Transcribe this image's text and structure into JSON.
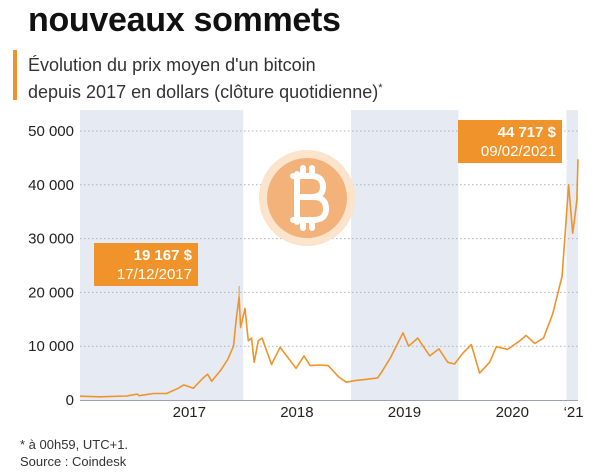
{
  "header": {
    "title": "nouveaux sommets",
    "subtitle_line1": "Évolution du prix moyen d'un bitcoin",
    "subtitle_line2": "depuis 2017 en dollars (clôture quotidienne)",
    "subtitle_mark": "*"
  },
  "footer": {
    "note": "* à 00h59, UTC+1.",
    "source": "Source : Coindesk"
  },
  "colors": {
    "accent": "#f0932b",
    "line": "#f0932b",
    "band": "#e5eaf3",
    "coin": "#f2b27a",
    "coin_ring": "#fbe3cc"
  },
  "icon": "bitcoin-coin-icon",
  "chart_data": {
    "type": "line",
    "x_unit": "date",
    "ylim": [
      0,
      50000
    ],
    "yticks": [
      0,
      10000,
      20000,
      30000,
      40000,
      50000
    ],
    "ytick_labels": [
      "0",
      "10 000",
      "20 000",
      "30 000",
      "40 000",
      "50 000"
    ],
    "xlim": [
      "2016-06-25",
      "2021-02-09"
    ],
    "xtick_labels": [
      "2017",
      "2018",
      "2019",
      "2020",
      "‘21"
    ],
    "xtick_dates": [
      "2017-07-01",
      "2018-07-01",
      "2019-07-01",
      "2020-07-01",
      "2021-01-25"
    ],
    "shaded_periods": [
      [
        "2016-06-25",
        "2017-12-31"
      ],
      [
        "2019-01-01",
        "2019-12-31"
      ],
      [
        "2021-01-01",
        "2021-02-09"
      ]
    ],
    "series": [
      {
        "x": [
          "2016-06-25",
          "2016-09-01",
          "2016-12-01",
          "2017-01-05",
          "2017-01-12",
          "2017-03-01",
          "2017-04-15",
          "2017-05-25",
          "2017-06-12",
          "2017-07-15",
          "2017-08-15",
          "2017-09-01",
          "2017-09-15",
          "2017-10-15",
          "2017-11-08",
          "2017-11-28",
          "2017-12-07",
          "2017-12-17",
          "2017-12-22",
          "2018-01-06",
          "2018-01-17",
          "2018-01-28",
          "2018-02-06",
          "2018-02-20",
          "2018-03-05",
          "2018-04-06",
          "2018-05-05",
          "2018-06-28",
          "2018-07-25",
          "2018-08-15",
          "2018-09-15",
          "2018-10-15",
          "2018-11-20",
          "2018-12-15",
          "2019-01-15",
          "2019-02-15",
          "2019-04-01",
          "2019-04-15",
          "2019-05-15",
          "2019-06-26",
          "2019-07-15",
          "2019-08-15",
          "2019-09-25",
          "2019-10-26",
          "2019-11-25",
          "2019-12-18",
          "2020-01-15",
          "2020-02-13",
          "2020-03-12",
          "2020-04-15",
          "2020-05-08",
          "2020-06-15",
          "2020-07-27",
          "2020-08-17",
          "2020-09-15",
          "2020-10-15",
          "2020-11-15",
          "2020-12-01",
          "2020-12-17",
          "2021-01-08",
          "2021-01-22",
          "2021-01-29",
          "2021-02-05",
          "2021-02-09"
        ],
        "y": [
          700,
          600,
          750,
          1100,
          800,
          1200,
          1200,
          2200,
          2800,
          2200,
          4000,
          4800,
          3500,
          5500,
          7500,
          10000,
          15000,
          19167,
          13500,
          17000,
          11000,
          11500,
          7000,
          11000,
          11500,
          6600,
          9800,
          5900,
          8200,
          6400,
          6500,
          6400,
          4300,
          3300,
          3600,
          3800,
          4100,
          5200,
          7900,
          12500,
          10000,
          11500,
          8200,
          9500,
          7000,
          6700,
          8700,
          10300,
          5000,
          7000,
          9900,
          9400,
          11000,
          12000,
          10500,
          11500,
          16000,
          19500,
          23000,
          40000,
          31000,
          34000,
          37000,
          44717
        ]
      }
    ],
    "annotations": [
      {
        "line1": "19 167 $",
        "line2": "17/12/2017",
        "x": "2017-12-17",
        "y": 19167
      },
      {
        "line1": "44 717 $",
        "line2": "09/02/2021",
        "x": "2021-02-09",
        "y": 44717
      }
    ]
  }
}
